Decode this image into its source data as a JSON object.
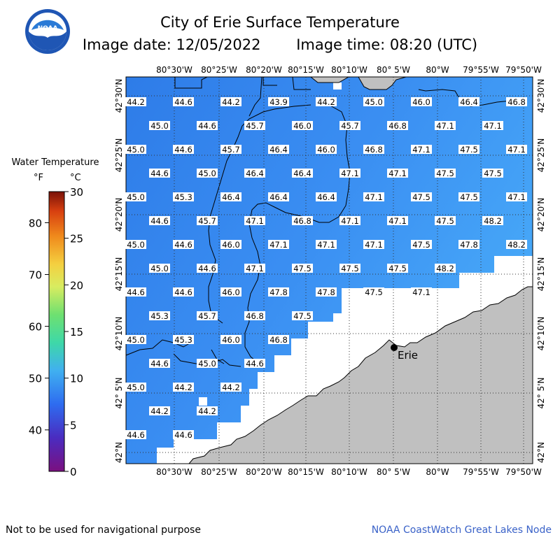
{
  "header": {
    "title": "City of Erie Surface Temperature",
    "date_label": "Image date: 12/05/2022",
    "time_label": "Image time: 08:20 (UTC)",
    "logo_text": "NOAA"
  },
  "legend": {
    "title": "Water Temperature",
    "unit_f": "°F",
    "unit_c": "°C",
    "f_ticks": [
      "40",
      "50",
      "60",
      "70",
      "80"
    ],
    "c_ticks": [
      "0",
      "5",
      "10",
      "15",
      "20",
      "25",
      "30"
    ]
  },
  "map": {
    "lon_labels": [
      "80°30'W",
      "80°25'W",
      "80°20'W",
      "80°15'W",
      "80°10'W",
      "80° 5'W",
      "80°W",
      "79°55'W",
      "79°50'W"
    ],
    "lat_labels": [
      "42°30'N",
      "42°25'N",
      "42°20'N",
      "42°15'N",
      "42°10'N",
      "42° 5'N",
      "42°N"
    ],
    "city_label": "Erie",
    "colors": {
      "water": "#3d8ef0",
      "land": "#c0c0c0",
      "no_data": "#ffffff"
    },
    "temperatures_f": [
      [
        "44.2",
        "44.6",
        "44.2",
        "43.9",
        "44.2",
        "45.0",
        "46.0",
        "46.4",
        "46.8"
      ],
      [
        "45.0",
        "44.6",
        "45.7",
        "46.0",
        "45.7",
        "46.8",
        "47.1",
        "47.1"
      ],
      [
        "45.0",
        "44.6",
        "45.7",
        "46.4",
        "46.0",
        "46.8",
        "47.1",
        "47.5",
        "47.1"
      ],
      [
        "44.6",
        "45.0",
        "46.4",
        "46.4",
        "47.1",
        "47.1",
        "47.5",
        "47.5"
      ],
      [
        "45.0",
        "45.3",
        "46.4",
        "46.4",
        "46.4",
        "47.1",
        "47.5",
        "47.5",
        "47.1"
      ],
      [
        "44.6",
        "45.7",
        "47.1",
        "46.8",
        "47.1",
        "47.1",
        "47.5",
        "48.2"
      ],
      [
        "45.0",
        "44.6",
        "46.0",
        "47.1",
        "47.1",
        "47.1",
        "47.5",
        "47.8",
        "48.2"
      ],
      [
        "45.0",
        "44.6",
        "47.1",
        "47.5",
        "47.5",
        "47.5",
        "48.2"
      ],
      [
        "44.6",
        "44.6",
        "46.0",
        "47.8",
        "47.8",
        "47.5",
        "47.1"
      ],
      [
        "45.3",
        "45.7",
        "46.8",
        "47.5"
      ],
      [
        "45.0",
        "45.3",
        "46.0",
        "46.8"
      ],
      [
        "44.6",
        "45.0",
        "44.6"
      ],
      [
        "45.0",
        "44.2",
        "44.2"
      ],
      [
        "44.2",
        "44.2"
      ],
      [
        "44.6",
        "44.6"
      ]
    ]
  },
  "footer": {
    "disclaimer": "Not to be used for navigational purpose",
    "credit": "NOAA CoastWatch Great Lakes Node"
  }
}
